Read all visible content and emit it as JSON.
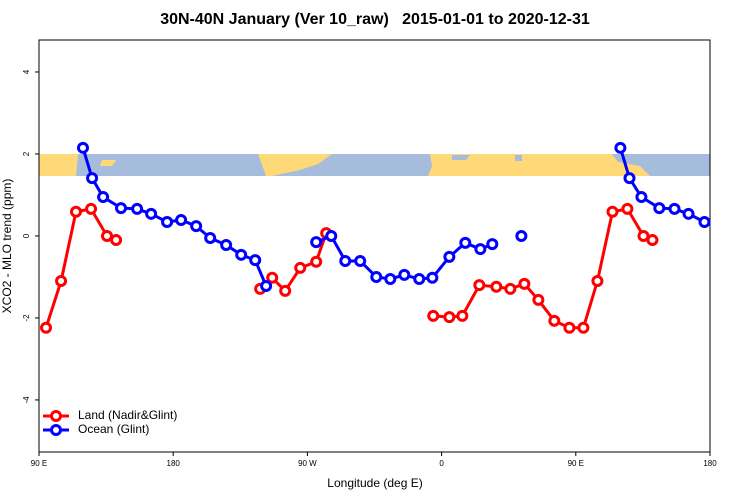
{
  "chart_data": {
    "type": "line",
    "title": "30N-40N January (Ver 10_raw)   2015-01-01 to 2020-12-31",
    "x_label": "Longitude (deg E)",
    "y_label": "XCO2 - MLO trend (ppm)",
    "xlim": [
      90,
      540
    ],
    "xticks": [
      {
        "value": 90,
        "label": "90 E"
      },
      {
        "value": 180,
        "label": "180"
      },
      {
        "value": 270,
        "label": "90 W"
      },
      {
        "value": 360,
        "label": "0"
      },
      {
        "value": 450,
        "label": "90 E"
      },
      {
        "value": 540,
        "label": "180"
      }
    ],
    "ylim": [
      -5.27,
      4.78
    ],
    "yticks": [
      -4,
      -2,
      0,
      2,
      4
    ],
    "legend": "lower left",
    "series": [
      {
        "name": "Land (Nadir&Glint)",
        "color": "#ff0000",
        "x": [
          94.7,
          104.8,
          114.8,
          124.9,
          135.6,
          141.7,
          null,
          238.3,
          246.4,
          255.1,
          265.2,
          275.9,
          282.6,
          null,
          354.4,
          365.2,
          373.9,
          385.3,
          396.7,
          406.1,
          415.5,
          424.9,
          435.6,
          445.7,
          455.1,
          464.5,
          474.6,
          484.6,
          495.4,
          501.4
        ],
        "values": [
          -2.24,
          -1.1,
          0.59,
          0.66,
          0,
          -0.1,
          null,
          -1.29,
          -1.02,
          -1.34,
          -0.78,
          -0.63,
          0.07,
          null,
          -1.95,
          -1.98,
          -1.95,
          -1.2,
          -1.24,
          -1.29,
          -1.17,
          -1.56,
          -2.07,
          -2.24,
          -2.24,
          -1.1,
          0.59,
          0.66,
          0,
          -0.1
        ]
      },
      {
        "name": "Ocean (Glint)",
        "color": "#0000ff",
        "x": [
          119.5,
          125.6,
          133,
          145,
          155.8,
          165.2,
          175.9,
          185.3,
          195.4,
          204.8,
          215.5,
          225.6,
          235,
          242.3,
          null,
          275.9,
          286,
          295.4,
          305.4,
          316.2,
          325.6,
          335,
          345,
          353.8,
          365.2,
          375.9,
          386,
          394,
          null,
          413.5,
          null,
          479.9,
          486,
          494,
          506,
          516.2,
          525.6,
          536.3
        ],
        "values": [
          2.15,
          1.41,
          0.95,
          0.68,
          0.66,
          0.54,
          0.34,
          0.39,
          0.24,
          -0.05,
          -0.22,
          -0.46,
          -0.59,
          -1.22,
          null,
          -0.15,
          0,
          -0.61,
          -0.61,
          -1.0,
          -1.05,
          -0.95,
          -1.05,
          -1.02,
          -0.51,
          -0.17,
          -0.32,
          -0.2,
          null,
          0,
          null,
          2.15,
          1.41,
          0.95,
          0.68,
          0.66,
          0.54,
          0.34
        ]
      }
    ]
  }
}
